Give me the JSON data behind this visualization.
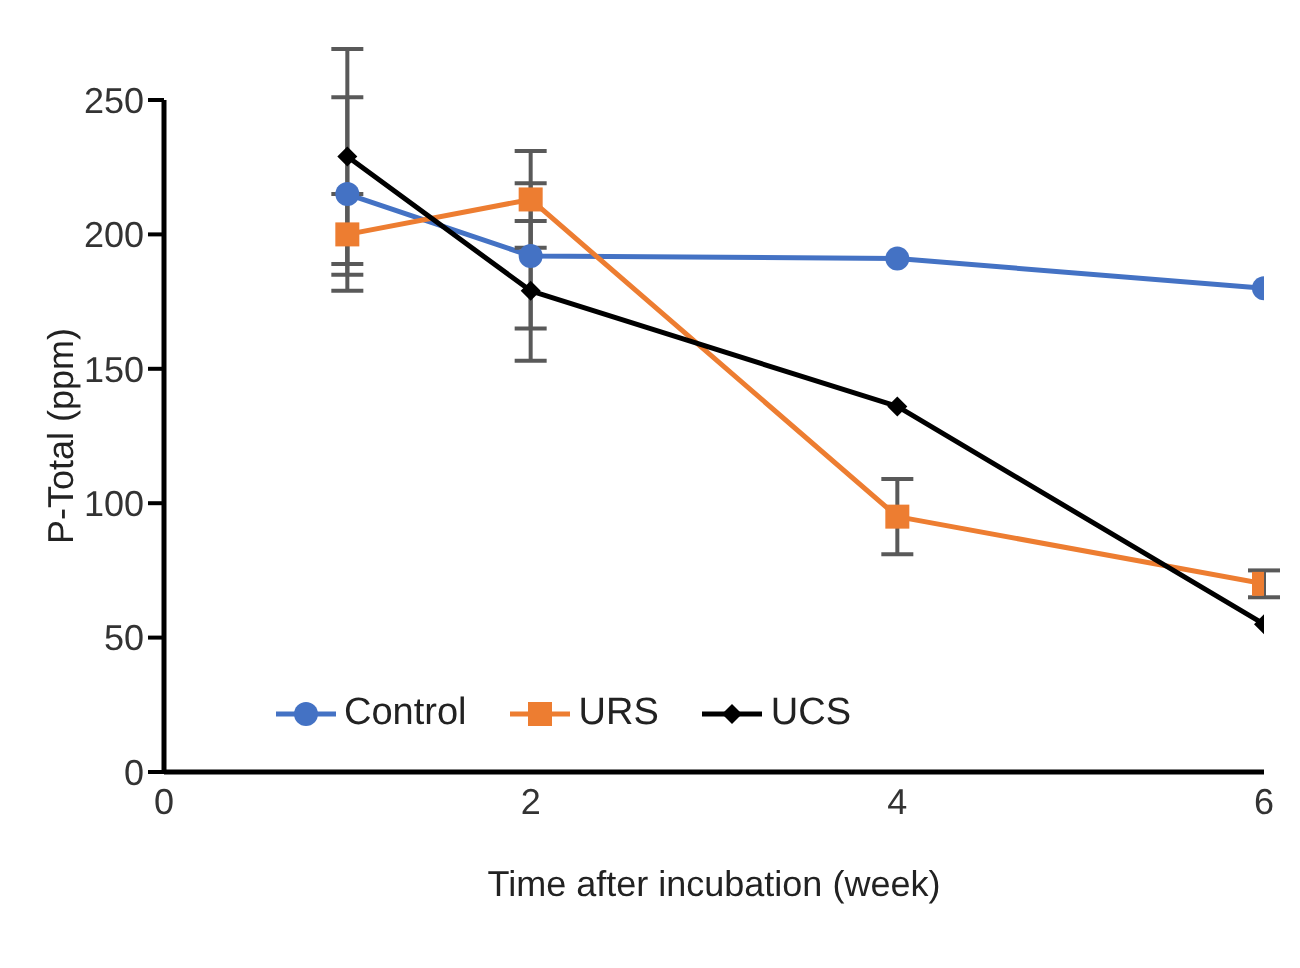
{
  "chart_data": {
    "type": "line",
    "xlabel": "Time after incubation (week)",
    "ylabel": "P-Total (ppm)",
    "x": [
      1,
      2,
      4,
      6
    ],
    "xlim": [
      0,
      6
    ],
    "xticks": [
      0,
      2,
      4,
      6
    ],
    "ylim": [
      0,
      250
    ],
    "yticks": [
      0,
      50,
      100,
      150,
      200,
      250
    ],
    "grid": false,
    "legend": "bottom left",
    "series": [
      {
        "name": "Control",
        "color": "#4472c4",
        "marker": "circle",
        "values": [
          215,
          192,
          191,
          180
        ],
        "errors": [
          36,
          27,
          null,
          null
        ]
      },
      {
        "name": "URS",
        "color": "#ed7d31",
        "marker": "square",
        "values": [
          200,
          213,
          95,
          70
        ],
        "errors": [
          15,
          18,
          14,
          5
        ]
      },
      {
        "name": "UCS",
        "color": "#000000",
        "marker": "diamond",
        "values": [
          229,
          179,
          136,
          55
        ],
        "errors": [
          40,
          26,
          null,
          null
        ]
      }
    ]
  }
}
